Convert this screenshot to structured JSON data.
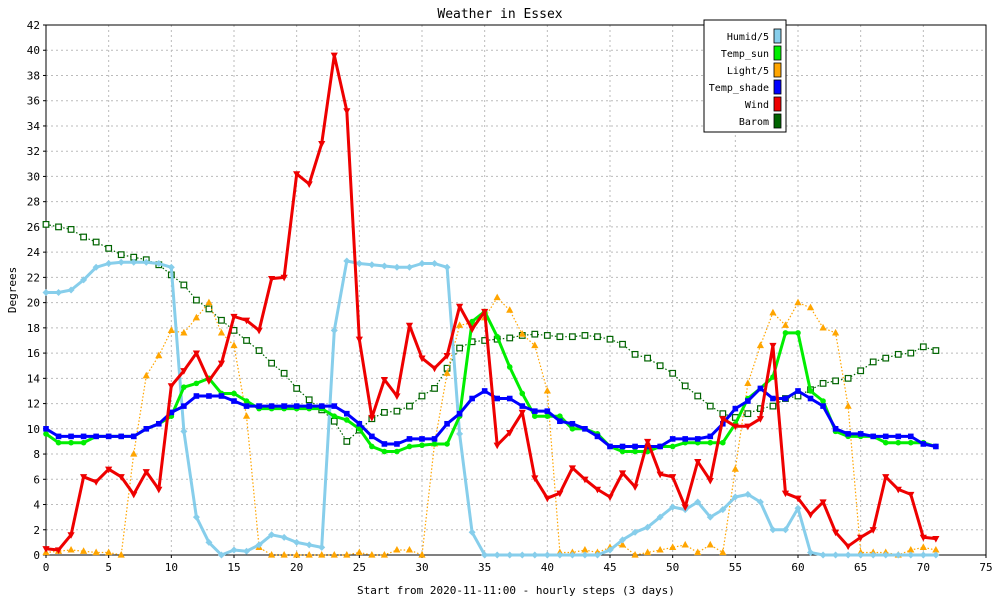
{
  "chart_data": {
    "type": "line",
    "title": "Weather in Essex",
    "xlabel": "Start from 2020-11-11:00 - hourly steps (3 days)",
    "ylabel": "Degrees",
    "xlim": [
      0,
      75
    ],
    "ylim": [
      0,
      42
    ],
    "x_ticks": [
      0,
      5,
      10,
      15,
      20,
      25,
      30,
      35,
      40,
      45,
      50,
      55,
      60,
      65,
      70,
      75
    ],
    "y_ticks": [
      0,
      2,
      4,
      6,
      8,
      10,
      12,
      14,
      16,
      18,
      20,
      22,
      24,
      26,
      28,
      30,
      32,
      34,
      36,
      38,
      40,
      42
    ],
    "grid": true,
    "legend_position": "top-right",
    "x": [
      0,
      1,
      2,
      3,
      4,
      5,
      6,
      7,
      8,
      9,
      10,
      11,
      12,
      13,
      14,
      15,
      16,
      17,
      18,
      19,
      20,
      21,
      22,
      23,
      24,
      25,
      26,
      27,
      28,
      29,
      30,
      31,
      32,
      33,
      34,
      35,
      36,
      37,
      38,
      39,
      40,
      41,
      42,
      43,
      44,
      45,
      46,
      47,
      48,
      49,
      50,
      51,
      52,
      53,
      54,
      55,
      56,
      57,
      58,
      59,
      60,
      61,
      62,
      63,
      64,
      65,
      66,
      67,
      68,
      69,
      70,
      71
    ],
    "series": [
      {
        "name": "Humid/5",
        "color": "#87ceeb",
        "marker": "diamond",
        "line": "solid",
        "values": [
          20.8,
          20.8,
          21.0,
          21.8,
          22.8,
          23.1,
          23.2,
          23.2,
          23.2,
          23.1,
          22.8,
          9.8,
          3.0,
          1.0,
          0.0,
          0.4,
          0.3,
          0.8,
          1.6,
          1.4,
          1.0,
          0.8,
          0.6,
          17.8,
          23.3,
          23.1,
          23.0,
          22.9,
          22.8,
          22.8,
          23.1,
          23.1,
          22.8,
          9.6,
          1.8,
          0.0,
          0.0,
          0.0,
          0.0,
          0.0,
          0.0,
          0.0,
          0.0,
          0.0,
          0.0,
          0.4,
          1.2,
          1.8,
          2.2,
          3.0,
          3.8,
          3.6,
          4.2,
          3.0,
          3.6,
          4.6,
          4.8,
          4.2,
          2.0,
          2.0,
          3.7,
          0.2,
          0.0,
          0.0,
          0.0,
          0.0,
          0.0,
          0.0,
          0.0,
          0.0,
          0.0,
          0.0
        ]
      },
      {
        "name": "Temp_sun",
        "color": "#00ee00",
        "marker": "circle",
        "line": "solid",
        "values": [
          9.6,
          8.9,
          8.9,
          8.9,
          9.4,
          9.4,
          9.4,
          9.4,
          10.0,
          10.4,
          11.0,
          13.3,
          13.6,
          14.0,
          12.8,
          12.8,
          12.2,
          11.6,
          11.6,
          11.6,
          11.6,
          11.6,
          11.6,
          11.0,
          10.7,
          10.0,
          8.6,
          8.2,
          8.2,
          8.6,
          8.7,
          8.8,
          8.8,
          11.0,
          18.5,
          19.3,
          17.3,
          14.9,
          12.8,
          11.0,
          11.0,
          11.0,
          10.0,
          10.0,
          9.6,
          8.6,
          8.2,
          8.2,
          8.2,
          8.6,
          8.6,
          8.9,
          8.9,
          8.9,
          8.9,
          10.4,
          12.4,
          13.2,
          14.1,
          17.6,
          17.6,
          13.0,
          12.2,
          9.8,
          9.4,
          9.4,
          9.4,
          8.9,
          8.9,
          8.9,
          8.9,
          8.6
        ]
      },
      {
        "name": "Light/5",
        "color": "#ffa500",
        "marker": "triangle-up",
        "line": "dotted",
        "values": [
          0.2,
          0.3,
          0.4,
          0.3,
          0.2,
          0.2,
          0.0,
          8.0,
          14.2,
          15.8,
          17.8,
          17.6,
          18.8,
          20.0,
          17.6,
          16.6,
          11.0,
          0.6,
          0.0,
          0.0,
          0.0,
          0.0,
          0.0,
          0.0,
          0.0,
          0.2,
          0.0,
          0.0,
          0.4,
          0.4,
          0.0,
          8.8,
          14.4,
          18.2,
          18.4,
          18.8,
          20.4,
          19.4,
          17.5,
          16.6,
          13.0,
          0.2,
          0.2,
          0.4,
          0.2,
          0.6,
          0.8,
          0.0,
          0.2,
          0.4,
          0.6,
          0.8,
          0.2,
          0.8,
          0.2,
          6.8,
          13.6,
          16.6,
          19.2,
          18.2,
          20.0,
          19.6,
          18.0,
          17.6,
          11.8,
          0.2,
          0.2,
          0.2,
          0.0,
          0.4,
          0.6,
          0.4
        ]
      },
      {
        "name": "Temp_shade",
        "color": "#0000ff",
        "marker": "square",
        "line": "solid",
        "values": [
          10.0,
          9.4,
          9.4,
          9.4,
          9.4,
          9.4,
          9.4,
          9.4,
          10.0,
          10.4,
          11.3,
          11.8,
          12.6,
          12.6,
          12.6,
          12.2,
          11.8,
          11.8,
          11.8,
          11.8,
          11.8,
          11.8,
          11.8,
          11.8,
          11.2,
          10.4,
          9.4,
          8.8,
          8.8,
          9.2,
          9.2,
          9.2,
          10.4,
          11.2,
          12.4,
          13.0,
          12.4,
          12.4,
          11.8,
          11.4,
          11.4,
          10.6,
          10.4,
          10.0,
          9.4,
          8.6,
          8.6,
          8.6,
          8.6,
          8.6,
          9.2,
          9.2,
          9.2,
          9.4,
          10.4,
          11.6,
          12.2,
          13.2,
          12.4,
          12.4,
          13.0,
          12.4,
          11.8,
          10.0,
          9.6,
          9.6,
          9.4,
          9.4,
          9.4,
          9.4,
          8.8,
          8.6
        ]
      },
      {
        "name": "Wind",
        "color": "#ee0000",
        "marker": "triangle-down",
        "line": "solid",
        "values": [
          0.5,
          0.4,
          1.6,
          6.2,
          5.8,
          6.8,
          6.2,
          4.8,
          6.6,
          5.2,
          13.4,
          14.6,
          16.0,
          13.8,
          15.2,
          18.9,
          18.6,
          17.8,
          21.9,
          22.0,
          30.2,
          29.4,
          32.6,
          39.6,
          35.2,
          17.1,
          10.9,
          13.9,
          12.6,
          18.2,
          15.6,
          14.8,
          15.8,
          19.7,
          17.9,
          19.3,
          8.7,
          9.7,
          11.3,
          6.1,
          4.5,
          4.9,
          6.9,
          6.0,
          5.2,
          4.6,
          6.5,
          5.4,
          9.0,
          6.4,
          6.2,
          3.8,
          7.4,
          5.9,
          10.8,
          10.2,
          10.2,
          10.8,
          16.6,
          4.9,
          4.5,
          3.2,
          4.2,
          1.8,
          0.7,
          1.4,
          2.0,
          6.2,
          5.2,
          4.8,
          1.4,
          1.3
        ]
      },
      {
        "name": "Barom",
        "color": "#006400",
        "marker": "square-open",
        "line": "dotted",
        "values": [
          26.2,
          26.0,
          25.8,
          25.2,
          24.8,
          24.3,
          23.8,
          23.6,
          23.4,
          23.0,
          22.2,
          21.4,
          20.2,
          19.5,
          18.6,
          17.8,
          17.0,
          16.2,
          15.2,
          14.4,
          13.2,
          12.3,
          11.5,
          10.6,
          9.0,
          9.9,
          10.8,
          11.3,
          11.4,
          11.8,
          12.6,
          13.2,
          14.8,
          16.4,
          16.9,
          17.0,
          17.1,
          17.2,
          17.4,
          17.5,
          17.4,
          17.3,
          17.3,
          17.4,
          17.3,
          17.1,
          16.7,
          15.9,
          15.6,
          15.0,
          14.4,
          13.4,
          12.6,
          11.8,
          11.2,
          10.9,
          11.2,
          11.6,
          11.8,
          12.4,
          12.6,
          13.1,
          13.6,
          13.8,
          14.0,
          14.6,
          15.3,
          15.6,
          15.9,
          16.0,
          16.5,
          16.2
        ]
      }
    ]
  }
}
